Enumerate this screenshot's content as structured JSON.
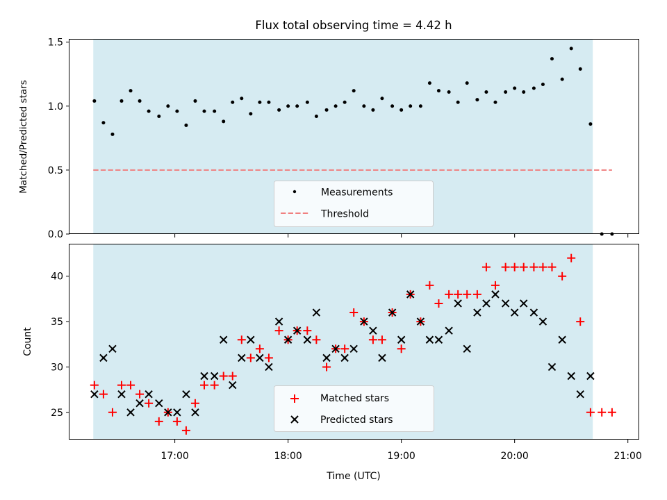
{
  "chart_data": [
    {
      "type": "scatter",
      "title": "Flux total observing time = 4.42 h",
      "ylabel": "Matched/Predicted stars",
      "xlim": [
        16.07,
        21.1
      ],
      "ylim": [
        0.0,
        1.52
      ],
      "yticks": [
        0.0,
        0.5,
        1.0,
        1.5
      ],
      "ytick_labels": [
        "0.0",
        "0.5",
        "1.0",
        "1.5"
      ],
      "observing_window": [
        16.28,
        20.69
      ],
      "legend": "lower-center",
      "colors": {
        "measurements": "#000000",
        "threshold": "#f08080",
        "window": "#add8e6"
      },
      "series": [
        {
          "name": "Measurements",
          "marker": "dot",
          "x": [
            16.29,
            16.37,
            16.45,
            16.53,
            16.61,
            16.69,
            16.77,
            16.86,
            16.94,
            17.02,
            17.1,
            17.18,
            17.26,
            17.35,
            17.43,
            17.51,
            17.59,
            17.67,
            17.75,
            17.83,
            17.92,
            18.0,
            18.08,
            18.17,
            18.25,
            18.34,
            18.42,
            18.5,
            18.58,
            18.67,
            18.75,
            18.83,
            18.92,
            19.0,
            19.08,
            19.17,
            19.25,
            19.33,
            19.42,
            19.5,
            19.58,
            19.67,
            19.75,
            19.83,
            19.92,
            20.0,
            20.08,
            20.17,
            20.25,
            20.33,
            20.42,
            20.5,
            20.58,
            20.67,
            20.77,
            20.86
          ],
          "y": [
            1.04,
            0.87,
            0.78,
            1.04,
            1.12,
            1.04,
            0.96,
            0.92,
            1.0,
            0.96,
            0.85,
            1.04,
            0.96,
            0.96,
            0.88,
            1.03,
            1.06,
            0.94,
            1.03,
            1.03,
            0.97,
            1.0,
            1.0,
            1.03,
            0.92,
            0.97,
            1.0,
            1.03,
            1.12,
            1.0,
            0.97,
            1.06,
            1.0,
            0.97,
            1.0,
            1.0,
            1.18,
            1.12,
            1.11,
            1.03,
            1.18,
            1.05,
            1.11,
            1.03,
            1.11,
            1.14,
            1.11,
            1.14,
            1.17,
            1.37,
            1.21,
            1.45,
            1.29,
            0.86,
            0.0,
            0.0
          ]
        },
        {
          "name": "Threshold",
          "marker": "dashed-line",
          "x": [
            16.28,
            20.86
          ],
          "y": [
            0.5,
            0.5
          ]
        }
      ]
    },
    {
      "type": "scatter",
      "xlabel": "Time (UTC)",
      "ylabel": "Count",
      "xlim": [
        16.07,
        21.1
      ],
      "ylim": [
        22.0,
        43.5
      ],
      "xticks": [
        17,
        18,
        19,
        20,
        21
      ],
      "xtick_labels": [
        "17:00",
        "18:00",
        "19:00",
        "20:00",
        "21:00"
      ],
      "yticks": [
        25,
        30,
        35,
        40
      ],
      "ytick_labels": [
        "25",
        "30",
        "35",
        "40"
      ],
      "observing_window": [
        16.28,
        20.69
      ],
      "legend": "lower-center",
      "colors": {
        "matched": "#ff0000",
        "predicted": "#000000",
        "window": "#add8e6"
      },
      "series": [
        {
          "name": "Matched stars",
          "marker": "plus",
          "x": [
            16.29,
            16.37,
            16.45,
            16.53,
            16.61,
            16.69,
            16.77,
            16.86,
            16.94,
            17.02,
            17.1,
            17.18,
            17.26,
            17.35,
            17.43,
            17.51,
            17.59,
            17.67,
            17.75,
            17.83,
            17.92,
            18.0,
            18.08,
            18.17,
            18.25,
            18.34,
            18.42,
            18.5,
            18.58,
            18.67,
            18.75,
            18.83,
            18.92,
            19.0,
            19.08,
            19.17,
            19.25,
            19.33,
            19.42,
            19.5,
            19.58,
            19.67,
            19.75,
            19.83,
            19.92,
            20.0,
            20.08,
            20.17,
            20.25,
            20.33,
            20.42,
            20.5,
            20.58,
            20.67,
            20.77,
            20.86
          ],
          "y": [
            28,
            27,
            25,
            28,
            28,
            27,
            26,
            24,
            25,
            24,
            23,
            26,
            28,
            28,
            29,
            29,
            33,
            31,
            32,
            31,
            34,
            33,
            34,
            34,
            33,
            30,
            32,
            32,
            36,
            35,
            33,
            33,
            36,
            32,
            38,
            35,
            39,
            37,
            38,
            38,
            38,
            38,
            41,
            39,
            41,
            41,
            41,
            41,
            41,
            41,
            40,
            42,
            35,
            25,
            25,
            25
          ]
        },
        {
          "name": "Predicted stars",
          "marker": "x",
          "x": [
            16.29,
            16.37,
            16.45,
            16.53,
            16.61,
            16.69,
            16.77,
            16.86,
            16.94,
            17.02,
            17.1,
            17.18,
            17.26,
            17.35,
            17.43,
            17.51,
            17.59,
            17.67,
            17.75,
            17.83,
            17.92,
            18.0,
            18.08,
            18.17,
            18.25,
            18.34,
            18.42,
            18.5,
            18.58,
            18.67,
            18.75,
            18.83,
            18.92,
            19.0,
            19.08,
            19.17,
            19.25,
            19.33,
            19.42,
            19.5,
            19.58,
            19.67,
            19.75,
            19.83,
            19.92,
            20.0,
            20.08,
            20.17,
            20.25,
            20.33,
            20.42,
            20.5,
            20.58,
            20.67
          ],
          "y": [
            27,
            31,
            32,
            27,
            25,
            26,
            27,
            26,
            25,
            25,
            27,
            25,
            29,
            29,
            33,
            28,
            31,
            33,
            31,
            30,
            35,
            33,
            34,
            33,
            36,
            31,
            32,
            31,
            32,
            35,
            34,
            31,
            36,
            33,
            38,
            35,
            33,
            33,
            34,
            37,
            32,
            36,
            37,
            38,
            37,
            36,
            37,
            36,
            35,
            30,
            33,
            29,
            27,
            29
          ]
        }
      ]
    }
  ]
}
